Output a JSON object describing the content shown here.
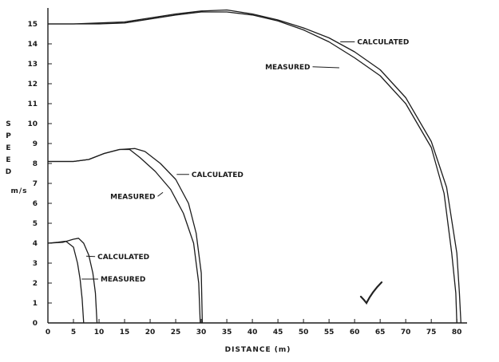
{
  "chart_data": {
    "type": "line",
    "xlabel": "DISTANCE (m)",
    "ylabel": "SPEED",
    "yunit": "m/s",
    "xlim": [
      0,
      82
    ],
    "ylim": [
      0,
      15.8
    ],
    "xticks": [
      "0",
      "5",
      "10",
      "15",
      "20",
      "25",
      "30",
      "35",
      "40",
      "45",
      "50",
      "55",
      "60",
      "65",
      "70",
      "75",
      "80"
    ],
    "yticks": [
      "0",
      "1",
      "2",
      "3",
      "4",
      "5",
      "6",
      "7",
      "8",
      "9",
      "10",
      "11",
      "12",
      "13",
      "14",
      "15"
    ],
    "grid": false,
    "series": [
      {
        "name": "CALCULATED",
        "group": "15 m/s",
        "points": [
          [
            0,
            15.0
          ],
          [
            5,
            15.0
          ],
          [
            10,
            15.05
          ],
          [
            15,
            15.1
          ],
          [
            20,
            15.3
          ],
          [
            25,
            15.5
          ],
          [
            30,
            15.65
          ],
          [
            35,
            15.7
          ],
          [
            40,
            15.5
          ],
          [
            45,
            15.2
          ],
          [
            50,
            14.8
          ],
          [
            55,
            14.3
          ],
          [
            60,
            13.6
          ],
          [
            65,
            12.7
          ],
          [
            70,
            11.3
          ],
          [
            75,
            9.1
          ],
          [
            78,
            6.8
          ],
          [
            80,
            3.5
          ],
          [
            80.5,
            1.5
          ],
          [
            80.8,
            0
          ]
        ]
      },
      {
        "name": "MEASURED",
        "group": "15 m/s",
        "points": [
          [
            0,
            15.0
          ],
          [
            5,
            15.0
          ],
          [
            10,
            15.0
          ],
          [
            15,
            15.05
          ],
          [
            20,
            15.25
          ],
          [
            25,
            15.45
          ],
          [
            30,
            15.6
          ],
          [
            35,
            15.6
          ],
          [
            40,
            15.45
          ],
          [
            45,
            15.15
          ],
          [
            50,
            14.7
          ],
          [
            55,
            14.1
          ],
          [
            60,
            13.3
          ],
          [
            65,
            12.4
          ],
          [
            70,
            11.0
          ],
          [
            75,
            8.8
          ],
          [
            77.5,
            6.5
          ],
          [
            79,
            3.5
          ],
          [
            79.8,
            1.5
          ],
          [
            80,
            0
          ]
        ]
      },
      {
        "name": "CALCULATED",
        "group": "8 m/s",
        "points": [
          [
            0,
            8.1
          ],
          [
            5,
            8.1
          ],
          [
            8,
            8.2
          ],
          [
            11,
            8.5
          ],
          [
            14,
            8.7
          ],
          [
            17,
            8.75
          ],
          [
            19,
            8.6
          ],
          [
            22,
            8.0
          ],
          [
            25,
            7.2
          ],
          [
            27.5,
            6.0
          ],
          [
            29,
            4.5
          ],
          [
            30,
            2.5
          ],
          [
            30.2,
            0
          ]
        ]
      },
      {
        "name": "MEASURED",
        "group": "8 m/s",
        "points": [
          [
            0,
            8.1
          ],
          [
            5,
            8.1
          ],
          [
            8,
            8.2
          ],
          [
            11,
            8.5
          ],
          [
            14,
            8.7
          ],
          [
            16,
            8.7
          ],
          [
            18,
            8.3
          ],
          [
            21,
            7.6
          ],
          [
            24,
            6.7
          ],
          [
            26.5,
            5.5
          ],
          [
            28.5,
            4.0
          ],
          [
            29.5,
            2.0
          ],
          [
            29.8,
            0
          ]
        ]
      },
      {
        "name": "CALCULATED",
        "group": "4 m/s",
        "points": [
          [
            0,
            4.0
          ],
          [
            3,
            4.05
          ],
          [
            5,
            4.2
          ],
          [
            6,
            4.25
          ],
          [
            7,
            4.0
          ],
          [
            8,
            3.4
          ],
          [
            8.8,
            2.5
          ],
          [
            9.3,
            1.5
          ],
          [
            9.6,
            0
          ]
        ]
      },
      {
        "name": "MEASURED",
        "group": "4 m/s",
        "points": [
          [
            0,
            4.0
          ],
          [
            2,
            4.05
          ],
          [
            3.5,
            4.1
          ],
          [
            5,
            3.8
          ],
          [
            5.8,
            3.0
          ],
          [
            6.3,
            2.2
          ],
          [
            6.7,
            1.2
          ],
          [
            7,
            0
          ]
        ]
      }
    ],
    "annotations": [
      {
        "text": "CALCULATED",
        "x": 60.5,
        "y": 14.1,
        "leader_to": [
          57.2,
          14.1
        ]
      },
      {
        "text": "MEASURED",
        "x": 42.5,
        "y": 12.85,
        "leader_to": [
          57,
          12.8
        ]
      },
      {
        "text": "CALCULATED",
        "x": 28.1,
        "y": 7.45,
        "leader_to": [
          25.2,
          7.45
        ]
      },
      {
        "text": "MEASURED",
        "x": 12.2,
        "y": 6.35,
        "leader_to": [
          22.5,
          6.55
        ]
      },
      {
        "text": "CALCULATED",
        "x": 9.7,
        "y": 3.33,
        "leader_to": [
          7.5,
          3.35
        ]
      },
      {
        "text": "MEASURED",
        "x": 10.3,
        "y": 2.2,
        "leader_to": [
          6.6,
          2.2
        ]
      }
    ]
  }
}
